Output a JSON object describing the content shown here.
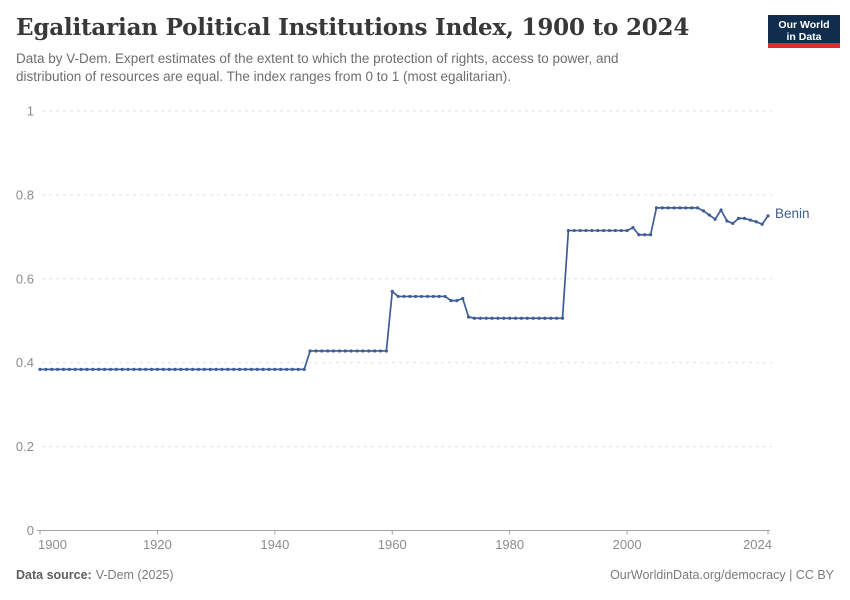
{
  "header": {
    "title": "Egalitarian Political Institutions Index, 1900 to 2024",
    "subtitle": "Data by V-Dem. Expert estimates of the extent to which the protection of rights, access to power, and distribution of resources are equal. The index ranges from 0 to 1 (most egalitarian).",
    "logo": {
      "line1": "Our World",
      "line2": "in Data"
    }
  },
  "colors": {
    "line": "#3e5c96",
    "grid": "#e0e0e0",
    "axis": "#a3a3a3",
    "tick_label": "#8c8c8c",
    "logo_bg": "#102d4d",
    "logo_accent": "#dc2e1c"
  },
  "chart_data": {
    "type": "line",
    "title": "Egalitarian Political Institutions Index, 1900 to 2024",
    "xlabel": "",
    "ylabel": "",
    "xlim": [
      1900,
      2024
    ],
    "ylim": [
      0,
      1
    ],
    "x_ticks": [
      1900,
      1920,
      1940,
      1960,
      1980,
      2000,
      2024
    ],
    "y_ticks": [
      0,
      0.2,
      0.4,
      0.6,
      0.8,
      1
    ],
    "y_tick_labels": [
      "0",
      "0.2",
      "0.4",
      "0.6",
      "0.8",
      "1"
    ],
    "grid": "horizontal-dashed",
    "legend_position": "end-of-line-label",
    "years": [
      1900,
      1901,
      1902,
      1903,
      1904,
      1905,
      1906,
      1907,
      1908,
      1909,
      1910,
      1911,
      1912,
      1913,
      1914,
      1915,
      1916,
      1917,
      1918,
      1919,
      1920,
      1921,
      1922,
      1923,
      1924,
      1925,
      1926,
      1927,
      1928,
      1929,
      1930,
      1931,
      1932,
      1933,
      1934,
      1935,
      1936,
      1937,
      1938,
      1939,
      1940,
      1941,
      1942,
      1943,
      1944,
      1945,
      1946,
      1947,
      1948,
      1949,
      1950,
      1951,
      1952,
      1953,
      1954,
      1955,
      1956,
      1957,
      1958,
      1959,
      1960,
      1961,
      1962,
      1963,
      1964,
      1965,
      1966,
      1967,
      1968,
      1969,
      1970,
      1971,
      1972,
      1973,
      1974,
      1975,
      1976,
      1977,
      1978,
      1979,
      1980,
      1981,
      1982,
      1983,
      1984,
      1985,
      1986,
      1987,
      1988,
      1989,
      1990,
      1991,
      1992,
      1993,
      1994,
      1995,
      1996,
      1997,
      1998,
      1999,
      2000,
      2001,
      2002,
      2003,
      2004,
      2005,
      2006,
      2007,
      2008,
      2009,
      2010,
      2011,
      2012,
      2013,
      2014,
      2015,
      2016,
      2017,
      2018,
      2019,
      2020,
      2021,
      2022,
      2023,
      2024
    ],
    "series": [
      {
        "name": "Benin",
        "values": [
          0.384,
          0.384,
          0.384,
          0.384,
          0.384,
          0.384,
          0.384,
          0.384,
          0.384,
          0.384,
          0.384,
          0.384,
          0.384,
          0.384,
          0.384,
          0.384,
          0.384,
          0.384,
          0.384,
          0.384,
          0.384,
          0.384,
          0.384,
          0.384,
          0.384,
          0.384,
          0.384,
          0.384,
          0.384,
          0.384,
          0.384,
          0.384,
          0.384,
          0.384,
          0.384,
          0.384,
          0.384,
          0.384,
          0.384,
          0.384,
          0.384,
          0.384,
          0.384,
          0.384,
          0.384,
          0.384,
          0.428,
          0.428,
          0.428,
          0.428,
          0.428,
          0.428,
          0.428,
          0.428,
          0.428,
          0.428,
          0.428,
          0.428,
          0.428,
          0.428,
          0.57,
          0.558,
          0.558,
          0.558,
          0.558,
          0.558,
          0.558,
          0.558,
          0.558,
          0.558,
          0.548,
          0.548,
          0.553,
          0.509,
          0.506,
          0.506,
          0.506,
          0.506,
          0.506,
          0.506,
          0.506,
          0.506,
          0.506,
          0.506,
          0.506,
          0.506,
          0.506,
          0.506,
          0.506,
          0.506,
          0.715,
          0.715,
          0.715,
          0.715,
          0.715,
          0.715,
          0.715,
          0.715,
          0.715,
          0.715,
          0.715,
          0.722,
          0.705,
          0.705,
          0.705,
          0.769,
          0.769,
          0.769,
          0.769,
          0.769,
          0.769,
          0.769,
          0.769,
          0.762,
          0.752,
          0.742,
          0.764,
          0.738,
          0.732,
          0.744,
          0.744,
          0.74,
          0.736,
          0.73,
          0.75
        ]
      }
    ]
  },
  "footer": {
    "source_label": "Data source:",
    "source_value": "V-Dem (2025)",
    "link": "OurWorldinData.org/democracy",
    "separator": " | ",
    "license": "CC BY"
  }
}
